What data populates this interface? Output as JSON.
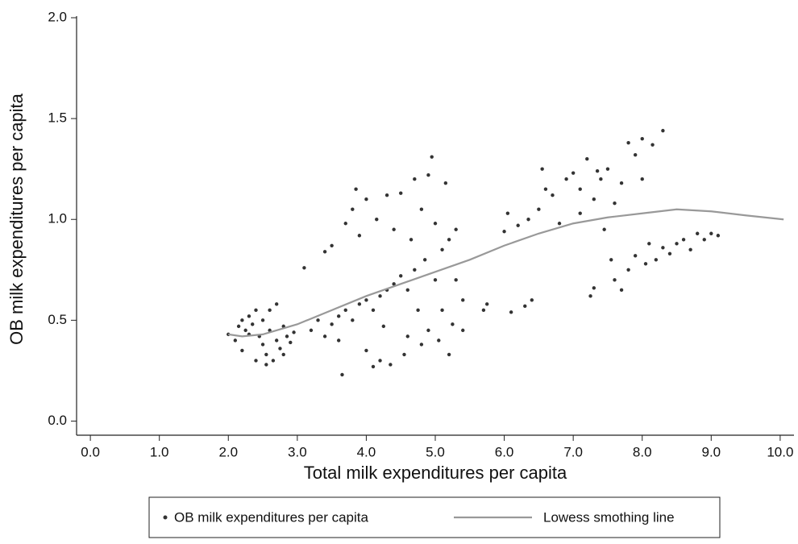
{
  "chart_data": {
    "type": "scatter",
    "x_label": "Total milk expenditures per capita",
    "y_label": "OB milk expenditures per capita",
    "xlim": [
      -0.2,
      10.2
    ],
    "ylim": [
      -0.07,
      2.0
    ],
    "xticks": [
      {
        "value": 0,
        "label": "0.0"
      },
      {
        "value": 1,
        "label": "1.0"
      },
      {
        "value": 2,
        "label": "2.0"
      },
      {
        "value": 3,
        "label": "3.0"
      },
      {
        "value": 4,
        "label": "4.0"
      },
      {
        "value": 5,
        "label": "5.0"
      },
      {
        "value": 6,
        "label": "6.0"
      },
      {
        "value": 7,
        "label": "7.0"
      },
      {
        "value": 8,
        "label": "8.0"
      },
      {
        "value": 9,
        "label": "9.0"
      },
      {
        "value": 10,
        "label": "10.0"
      }
    ],
    "yticks": [
      {
        "value": 0,
        "label": "0.0"
      },
      {
        "value": 0.5,
        "label": "0.5"
      },
      {
        "value": 1,
        "label": "1.0"
      },
      {
        "value": 1.5,
        "label": "1.5"
      },
      {
        "value": 2,
        "label": "2.0"
      }
    ],
    "grid": false,
    "series": [
      {
        "name": "OB milk expenditures per capita",
        "type": "scatter",
        "color": "#333333",
        "x": [
          2.0,
          2.1,
          2.15,
          2.2,
          2.25,
          2.3,
          2.35,
          2.4,
          2.45,
          2.5,
          2.5,
          2.55,
          2.6,
          2.6,
          2.65,
          2.7,
          2.7,
          2.75,
          2.8,
          2.85,
          2.9,
          2.95,
          2.2,
          2.4,
          2.55,
          2.3,
          2.8,
          3.1,
          3.2,
          3.3,
          3.4,
          3.5,
          3.5,
          3.6,
          3.65,
          3.7,
          3.7,
          3.8,
          3.8,
          3.85,
          3.9,
          3.9,
          4.0,
          4.0,
          4.0,
          4.1,
          4.1,
          4.15,
          4.2,
          4.2,
          4.3,
          4.3,
          4.35,
          4.4,
          4.4,
          4.5,
          4.5,
          4.55,
          4.6,
          4.6,
          4.7,
          4.7,
          4.75,
          4.8,
          4.8,
          4.85,
          4.9,
          4.9,
          4.95,
          5.0,
          5.0,
          5.05,
          5.1,
          5.1,
          5.2,
          5.2,
          5.25,
          5.3,
          5.3,
          5.4,
          5.4,
          3.4,
          3.6,
          4.25,
          4.65,
          5.15,
          5.7,
          5.75,
          6.0,
          6.05,
          6.1,
          6.2,
          6.3,
          6.35,
          6.4,
          6.5,
          6.55,
          6.6,
          6.7,
          6.8,
          6.9,
          7.0,
          7.1,
          7.2,
          7.25,
          7.3,
          7.3,
          7.4,
          7.45,
          7.5,
          7.55,
          7.6,
          7.6,
          7.7,
          7.7,
          7.8,
          7.8,
          7.9,
          7.9,
          8.0,
          8.0,
          8.05,
          8.1,
          8.15,
          8.2,
          8.3,
          8.3,
          8.4,
          8.5,
          8.6,
          8.7,
          8.8,
          8.9,
          9.0,
          9.1,
          7.1,
          7.35
        ],
        "values": [
          0.43,
          0.4,
          0.47,
          0.5,
          0.45,
          0.52,
          0.48,
          0.55,
          0.42,
          0.38,
          0.5,
          0.33,
          0.45,
          0.55,
          0.3,
          0.4,
          0.58,
          0.36,
          0.47,
          0.42,
          0.39,
          0.44,
          0.35,
          0.3,
          0.28,
          0.43,
          0.33,
          0.76,
          0.45,
          0.5,
          0.84,
          0.87,
          0.48,
          0.52,
          0.23,
          0.98,
          0.55,
          1.05,
          0.5,
          1.15,
          0.58,
          0.92,
          0.6,
          1.1,
          0.35,
          0.27,
          0.55,
          1.0,
          0.62,
          0.3,
          1.12,
          0.65,
          0.28,
          0.68,
          0.95,
          0.72,
          1.13,
          0.33,
          0.65,
          0.42,
          1.2,
          0.75,
          0.55,
          1.05,
          0.38,
          0.8,
          1.22,
          0.45,
          1.31,
          0.7,
          0.98,
          0.4,
          0.85,
          0.55,
          0.9,
          0.33,
          0.48,
          0.7,
          0.95,
          0.6,
          0.45,
          0.42,
          0.4,
          0.47,
          0.9,
          1.18,
          0.55,
          0.58,
          0.94,
          1.03,
          0.54,
          0.97,
          0.57,
          1.0,
          0.6,
          1.05,
          1.25,
          1.15,
          1.12,
          0.98,
          1.2,
          1.23,
          1.15,
          1.3,
          0.62,
          1.1,
          0.66,
          1.2,
          0.95,
          1.25,
          0.8,
          0.7,
          1.08,
          1.18,
          0.65,
          1.38,
          0.75,
          1.32,
          0.82,
          1.4,
          1.2,
          0.78,
          0.88,
          1.37,
          0.8,
          1.44,
          0.86,
          0.83,
          0.88,
          0.9,
          0.85,
          0.93,
          0.9,
          0.93,
          0.92,
          1.03,
          1.24
        ]
      },
      {
        "name": "Lowess smothing line",
        "type": "line",
        "color": "#999999",
        "x": [
          2.0,
          2.2,
          2.5,
          3.0,
          3.5,
          4.0,
          4.5,
          5.0,
          5.5,
          6.0,
          6.5,
          7.0,
          7.5,
          8.0,
          8.5,
          9.0,
          9.5,
          10.05
        ],
        "values": [
          0.43,
          0.42,
          0.43,
          0.48,
          0.55,
          0.62,
          0.68,
          0.74,
          0.8,
          0.87,
          0.93,
          0.98,
          1.01,
          1.03,
          1.05,
          1.04,
          1.02,
          1.0
        ]
      }
    ]
  }
}
